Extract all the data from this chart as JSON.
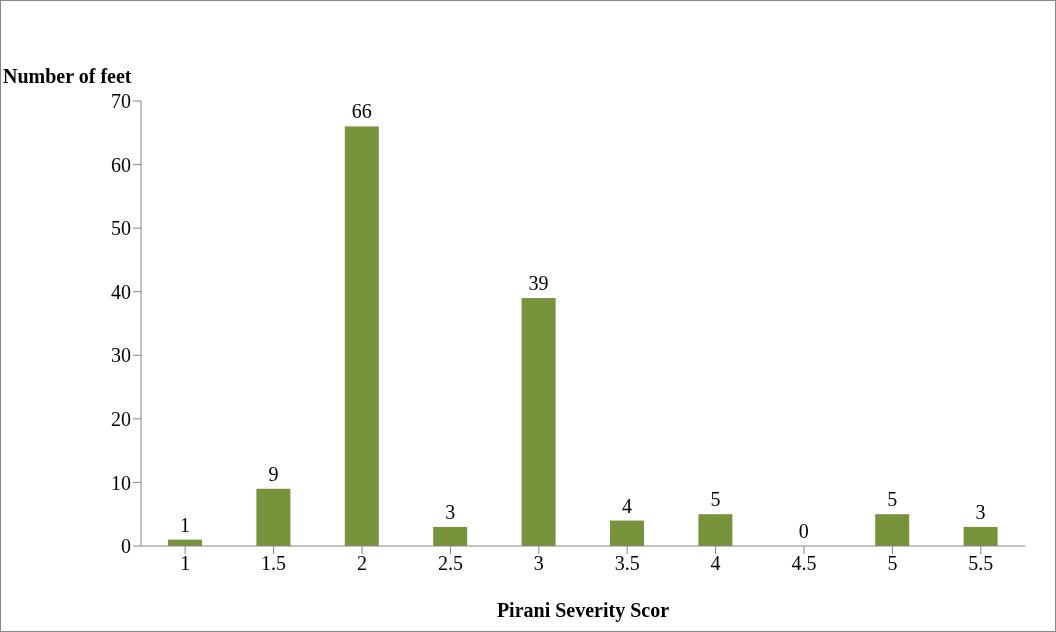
{
  "chart_data": {
    "type": "bar",
    "xlabel": "Pirani Severity Scor",
    "ylabel": "Number of feet",
    "categories": [
      "1",
      "1.5",
      "2",
      "2.5",
      "3",
      "3.5",
      "4",
      "4.5",
      "5",
      "5.5"
    ],
    "values": [
      1,
      9,
      66,
      3,
      39,
      4,
      5,
      0,
      5,
      3
    ],
    "color": "#77933c",
    "ylim": [
      0,
      70
    ],
    "yticks": [
      0,
      10,
      20,
      30,
      40,
      50,
      60,
      70
    ],
    "grid": false,
    "legend": false,
    "data_labels": true
  }
}
